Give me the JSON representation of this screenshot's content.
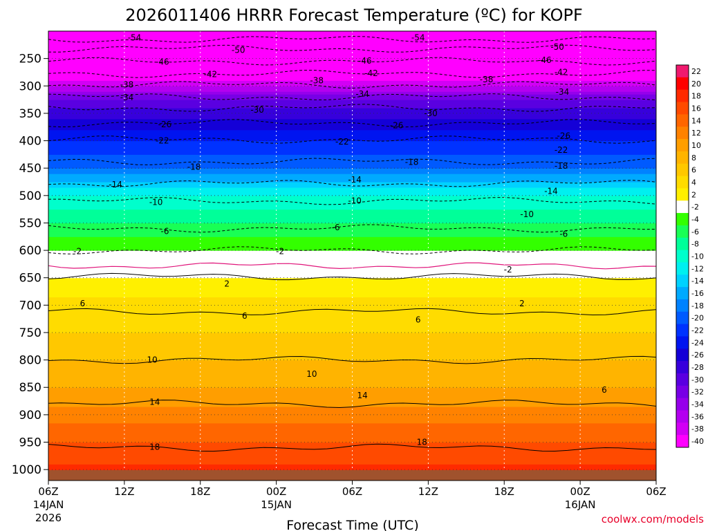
{
  "chart_data": {
    "type": "heatmap",
    "title": "2026011406 HRRR Forecast Temperature (ºC) for KOPF",
    "xlabel": "Forecast Time (UTC)",
    "ylabel": "",
    "credit": "coolwx.com/models",
    "x_range_hours": [
      0,
      48
    ],
    "x_ticks": [
      {
        "hour": 0,
        "label": "06Z",
        "date": "14JAN",
        "year": "2026"
      },
      {
        "hour": 6,
        "label": "12Z",
        "date": "",
        "year": ""
      },
      {
        "hour": 12,
        "label": "18Z",
        "date": "",
        "year": ""
      },
      {
        "hour": 18,
        "label": "00Z",
        "date": "15JAN",
        "year": ""
      },
      {
        "hour": 24,
        "label": "06Z",
        "date": "",
        "year": ""
      },
      {
        "hour": 30,
        "label": "12Z",
        "date": "",
        "year": ""
      },
      {
        "hour": 36,
        "label": "18Z",
        "date": "",
        "year": ""
      },
      {
        "hour": 42,
        "label": "00Z",
        "date": "16JAN",
        "year": ""
      },
      {
        "hour": 48,
        "label": "06Z",
        "date": "",
        "year": ""
      }
    ],
    "y_axis": "pressure (hPa), inverted",
    "y_range_hpa": [
      1020,
      200
    ],
    "y_ticks": [
      250,
      300,
      350,
      400,
      450,
      500,
      550,
      600,
      650,
      700,
      750,
      800,
      850,
      900,
      950,
      1000
    ],
    "colorbar": {
      "labels": [
        "22",
        "20",
        "18",
        "16",
        "14",
        "12",
        "10",
        "8",
        "6",
        "4",
        "2",
        "-2",
        "-4",
        "-6",
        "-8",
        "-10",
        "-12",
        "-14",
        "-16",
        "-18",
        "-20",
        "-22",
        "-24",
        "-26",
        "-28",
        "-30",
        "-32",
        "-34",
        "-36",
        "-38",
        "-40"
      ],
      "colors": [
        "#f0196e",
        "#ff0000",
        "#ff2a00",
        "#ff4a00",
        "#ff6600",
        "#ff8200",
        "#ff9e00",
        "#ffb400",
        "#ffc800",
        "#ffdc00",
        "#fff000",
        "#ffffff",
        "#33ff00",
        "#19ff55",
        "#00ff99",
        "#00ffcc",
        "#00f0f0",
        "#00d2ff",
        "#00aaff",
        "#0082ff",
        "#005aff",
        "#0032ff",
        "#0014f0",
        "#1400d7",
        "#3700dc",
        "#5a00e1",
        "#7800e6",
        "#9600eb",
        "#b400f0",
        "#d200f5",
        "#ff00ff"
      ]
    },
    "profile": [
      {
        "p": 1000,
        "t": 18.5
      },
      {
        "p": 950,
        "t": 16
      },
      {
        "p": 900,
        "t": 13
      },
      {
        "p": 850,
        "t": 10
      },
      {
        "p": 800,
        "t": 8
      },
      {
        "p": 750,
        "t": 6
      },
      {
        "p": 700,
        "t": 5
      },
      {
        "p": 650,
        "t": 2
      },
      {
        "p": 625,
        "t": 0.5
      },
      {
        "p": 600,
        "t": -2
      },
      {
        "p": 550,
        "t": -6
      },
      {
        "p": 500,
        "t": -10
      },
      {
        "p": 475,
        "t": -14
      },
      {
        "p": 450,
        "t": -18
      },
      {
        "p": 400,
        "t": -22
      },
      {
        "p": 350,
        "t": -27
      },
      {
        "p": 320,
        "t": -31
      },
      {
        "p": 300,
        "t": -36
      },
      {
        "p": 270,
        "t": -42
      },
      {
        "p": 250,
        "t": -46
      },
      {
        "p": 230,
        "t": -50
      },
      {
        "p": 200,
        "t": -55
      }
    ],
    "contours": [
      {
        "value": "-54",
        "p": 215
      },
      {
        "value": "-50",
        "p": 232
      },
      {
        "value": "-46",
        "p": 255
      },
      {
        "value": "-42",
        "p": 278
      },
      {
        "value": "-38",
        "p": 298
      },
      {
        "value": "-34",
        "p": 320
      },
      {
        "value": "-30",
        "p": 340
      },
      {
        "value": "-26",
        "p": 368
      },
      {
        "value": "-22",
        "p": 398
      },
      {
        "value": "-18",
        "p": 438
      },
      {
        "value": "-14",
        "p": 478
      },
      {
        "value": "-10",
        "p": 510
      },
      {
        "value": "-6",
        "p": 560
      },
      {
        "value": "-2",
        "p": 600
      },
      {
        "value": "2",
        "p": 648
      },
      {
        "value": "6",
        "p": 712
      },
      {
        "value": "10",
        "p": 800
      },
      {
        "value": "14",
        "p": 880
      },
      {
        "value": "18",
        "p": 960
      }
    ],
    "contour_labels": [
      {
        "value": "-54",
        "hour": 6.8,
        "p": 212
      },
      {
        "value": "-54",
        "hour": 29.2,
        "p": 212
      },
      {
        "value": "-50",
        "hour": 15,
        "p": 235
      },
      {
        "value": "-50",
        "hour": 40.2,
        "p": 229
      },
      {
        "value": "-46",
        "hour": 9,
        "p": 256
      },
      {
        "value": "-46",
        "hour": 25,
        "p": 254
      },
      {
        "value": "-46",
        "hour": 39.2,
        "p": 253
      },
      {
        "value": "-42",
        "hour": 12.8,
        "p": 279
      },
      {
        "value": "-42",
        "hour": 25.5,
        "p": 277
      },
      {
        "value": "-42",
        "hour": 40.5,
        "p": 275
      },
      {
        "value": "-38",
        "hour": 6.2,
        "p": 298
      },
      {
        "value": "-38",
        "hour": 21.2,
        "p": 290
      },
      {
        "value": "-38",
        "hour": 34.6,
        "p": 288
      },
      {
        "value": "-34",
        "hour": 6.2,
        "p": 321
      },
      {
        "value": "-34",
        "hour": 24.8,
        "p": 315
      },
      {
        "value": "-34",
        "hour": 40.6,
        "p": 311
      },
      {
        "value": "-30",
        "hour": 16.5,
        "p": 344
      },
      {
        "value": "-30",
        "hour": 30.2,
        "p": 350
      },
      {
        "value": "-26",
        "hour": 9.2,
        "p": 370
      },
      {
        "value": "-26",
        "hour": 27.5,
        "p": 372
      },
      {
        "value": "-26",
        "hour": 40.7,
        "p": 391
      },
      {
        "value": "-22",
        "hour": 9,
        "p": 400
      },
      {
        "value": "-22",
        "hour": 23.2,
        "p": 402
      },
      {
        "value": "-22",
        "hour": 40.5,
        "p": 417
      },
      {
        "value": "-18",
        "hour": 11.5,
        "p": 448
      },
      {
        "value": "-18",
        "hour": 28.7,
        "p": 439
      },
      {
        "value": "-18",
        "hour": 40.5,
        "p": 446
      },
      {
        "value": "-14",
        "hour": 5.3,
        "p": 480
      },
      {
        "value": "-14",
        "hour": 24.2,
        "p": 471
      },
      {
        "value": "-14",
        "hour": 39.7,
        "p": 492
      },
      {
        "value": "-10",
        "hour": 8.5,
        "p": 512
      },
      {
        "value": "-10",
        "hour": 24.2,
        "p": 510
      },
      {
        "value": "-10",
        "hour": 37.8,
        "p": 534
      },
      {
        "value": "-6",
        "hour": 9.2,
        "p": 565
      },
      {
        "value": "-6",
        "hour": 22.7,
        "p": 558
      },
      {
        "value": "-6",
        "hour": 40.7,
        "p": 570
      },
      {
        "value": "-2",
        "hour": 2.3,
        "p": 602
      },
      {
        "value": "-2",
        "hour": 18.3,
        "p": 602
      },
      {
        "value": "-2",
        "hour": 36.3,
        "p": 635
      },
      {
        "value": "2",
        "hour": 14.1,
        "p": 661
      },
      {
        "value": "2",
        "hour": 37.4,
        "p": 697
      },
      {
        "value": "6",
        "hour": 2.7,
        "p": 697
      },
      {
        "value": "6",
        "hour": 15.5,
        "p": 720
      },
      {
        "value": "6",
        "hour": 29.2,
        "p": 727
      },
      {
        "value": "6",
        "hour": 43.9,
        "p": 855
      },
      {
        "value": "10",
        "hour": 8.2,
        "p": 800
      },
      {
        "value": "10",
        "hour": 20.8,
        "p": 826
      },
      {
        "value": "14",
        "hour": 8.4,
        "p": 877
      },
      {
        "value": "14",
        "hour": 24.8,
        "p": 865
      },
      {
        "value": "18",
        "hour": 8.4,
        "p": 959
      },
      {
        "value": "18",
        "hour": 29.5,
        "p": 950
      }
    ]
  }
}
